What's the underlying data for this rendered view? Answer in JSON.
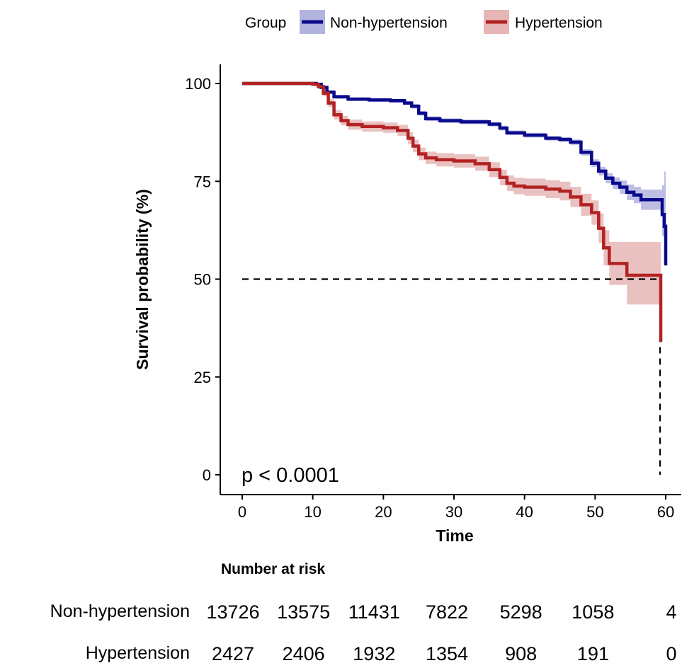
{
  "chart_data": {
    "type": "line",
    "subtype": "kaplan-meier",
    "xlabel": "Time",
    "ylabel": "Survival probability (%)",
    "xlim": [
      0,
      60
    ],
    "ylim": [
      0,
      100
    ],
    "x_ticks": [
      0,
      10,
      20,
      30,
      40,
      50,
      60
    ],
    "y_ticks": [
      0,
      25,
      50,
      75,
      100
    ],
    "grid": false,
    "legend_title": "Group",
    "legend_position": "top",
    "annotation": "p < 0.0001",
    "median_line_y": 50,
    "median_line_x": 59.2,
    "series": [
      {
        "name": "Non-hypertension",
        "color": "#0a0a8c",
        "ci_color": "#b3b3e0",
        "x": [
          0,
          8,
          10.5,
          11.2,
          12,
          13,
          15,
          18,
          21,
          23,
          24,
          25,
          26,
          28,
          31,
          35,
          36.5,
          37.5,
          40,
          43,
          45,
          46.5,
          48,
          49.5,
          50.5,
          51.5,
          52.5,
          53.5,
          54.5,
          55.5,
          56.5,
          58.9,
          59.5,
          59.8,
          60
        ],
        "y": [
          100,
          100,
          99.8,
          99,
          97.8,
          96.6,
          96.0,
          95.8,
          95.6,
          95.0,
          94.2,
          92.4,
          91.0,
          90.5,
          90.2,
          89.6,
          88.6,
          87.4,
          86.8,
          86.0,
          85.7,
          85.0,
          82.4,
          79.6,
          77.6,
          75.8,
          74.5,
          73.5,
          72.2,
          71.5,
          70.3,
          70.3,
          66.5,
          63.5,
          53.5
        ],
        "ci_upper": [
          100,
          100,
          100,
          99.4,
          98.3,
          97.1,
          96.5,
          96.3,
          96.1,
          95.5,
          94.8,
          93.0,
          91.6,
          91.1,
          90.8,
          90.2,
          89.2,
          88.0,
          87.4,
          86.6,
          86.3,
          85.7,
          83.2,
          80.6,
          78.7,
          77.1,
          76.0,
          75.2,
          74.2,
          73.6,
          72.9,
          72.9,
          74.0,
          77.5,
          77.5
        ],
        "ci_lower": [
          100,
          100,
          99.6,
          98.6,
          97.3,
          96.1,
          95.5,
          95.3,
          95.1,
          94.5,
          93.6,
          91.8,
          90.4,
          89.9,
          89.6,
          89.0,
          88.0,
          86.8,
          86.2,
          85.4,
          85.1,
          84.3,
          81.6,
          78.6,
          76.5,
          74.5,
          73.0,
          71.8,
          70.2,
          69.4,
          67.7,
          67.7,
          61.0,
          55.0,
          40.0
        ]
      },
      {
        "name": "Hypertension",
        "color": "#b22222",
        "ci_color": "#e6b6b6",
        "x": [
          0,
          8,
          10,
          10.8,
          11.5,
          12.2,
          13,
          14,
          15,
          17,
          20,
          22,
          23.5,
          24.2,
          25,
          26,
          27.5,
          30,
          33,
          35,
          36.5,
          37.5,
          38.5,
          40,
          43,
          45,
          46.5,
          48,
          49.5,
          50.5,
          51.2,
          52,
          54.5,
          59.2,
          59.3
        ],
        "y": [
          100,
          100,
          99.8,
          99.2,
          97.5,
          95.0,
          92.0,
          90.5,
          89.5,
          89.0,
          88.7,
          88.0,
          86.0,
          84.0,
          82.0,
          81.0,
          80.5,
          80.2,
          79.5,
          78.0,
          76.0,
          74.5,
          73.8,
          73.5,
          73.0,
          72.5,
          71.0,
          69.0,
          67.0,
          63.0,
          58.0,
          54.0,
          51.0,
          51.0,
          34.0
        ],
        "ci_upper": [
          100,
          100,
          100,
          99.8,
          98.3,
          96.0,
          93.2,
          91.7,
          90.8,
          90.3,
          90.0,
          89.4,
          87.5,
          85.6,
          83.6,
          82.6,
          82.2,
          81.9,
          81.3,
          79.9,
          78.0,
          76.5,
          75.9,
          75.7,
          75.3,
          74.9,
          73.6,
          71.8,
          70.1,
          66.8,
          62.5,
          59.5,
          59.5,
          59.5,
          59.5
        ],
        "ci_lower": [
          100,
          100,
          99.6,
          98.6,
          96.7,
          94.0,
          90.8,
          89.3,
          88.2,
          87.7,
          87.4,
          86.6,
          84.5,
          82.4,
          80.4,
          79.4,
          78.8,
          78.5,
          77.7,
          76.1,
          74.0,
          72.5,
          71.7,
          71.3,
          70.7,
          70.1,
          68.4,
          66.2,
          63.9,
          59.2,
          53.5,
          48.5,
          43.5,
          43.5,
          34.0
        ]
      }
    ],
    "risk_table": {
      "title": "Number at risk",
      "rows": [
        {
          "label": "Non-hypertension",
          "values": [
            "13726",
            "13575",
            "11431",
            "7822",
            "5298",
            "1058",
            "4"
          ]
        },
        {
          "label": "Hypertension",
          "values": [
            "2427",
            "2406",
            "1932",
            "1354",
            "908",
            "191",
            "0"
          ]
        }
      ]
    }
  }
}
